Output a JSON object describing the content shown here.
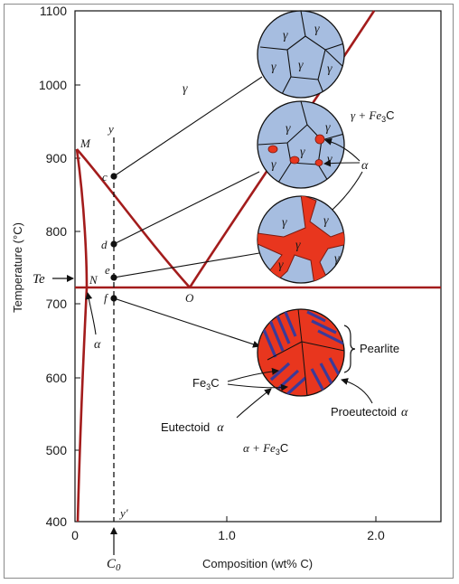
{
  "diagram": {
    "x_axis_label": "Composition (wt% C)",
    "y_axis_label": "Temperature (°C)",
    "x_ticks": [
      "0",
      "1.0",
      "2.0"
    ],
    "y_ticks": [
      "400",
      "500",
      "600",
      "700",
      "800",
      "900",
      "1000",
      "1100"
    ],
    "eutectoid_temp_label": "Te",
    "eutectoid_temp_sub": "e",
    "composition_label": "C",
    "composition_sub": "0",
    "points": {
      "M": "M",
      "N": "N",
      "O": "O",
      "c": "c",
      "d": "d",
      "e": "e",
      "f": "f",
      "y_top": "y",
      "y_bottom": "y′"
    },
    "phases": {
      "gamma": "γ",
      "gamma_fe3c": "γ + Fe",
      "gamma_fe3c_sub": "3",
      "gamma_fe3c_end": "C",
      "alpha_label_right": "α",
      "alpha_label_left": "α",
      "alpha_fe3c_prefix": "α + Fe",
      "alpha_fe3c_sub": "3",
      "alpha_fe3c_end": "C"
    },
    "microstructure_labels": {
      "pearlite": "Pearlite",
      "fe3c": "Fe",
      "fe3c_sub": "3",
      "fe3c_end": "C",
      "eutectoid_alpha": "Eutectoid",
      "proeutectoid_alpha": "Proeutectoid",
      "greek_alpha": "α"
    },
    "grain_labels": {
      "g": "γ"
    },
    "colors": {
      "phase_boundary": "#a31c1c",
      "austenite": "#a6bde0",
      "ferrite": "#e8361e",
      "cementite": "#3b3a99",
      "line": "#111111"
    }
  }
}
